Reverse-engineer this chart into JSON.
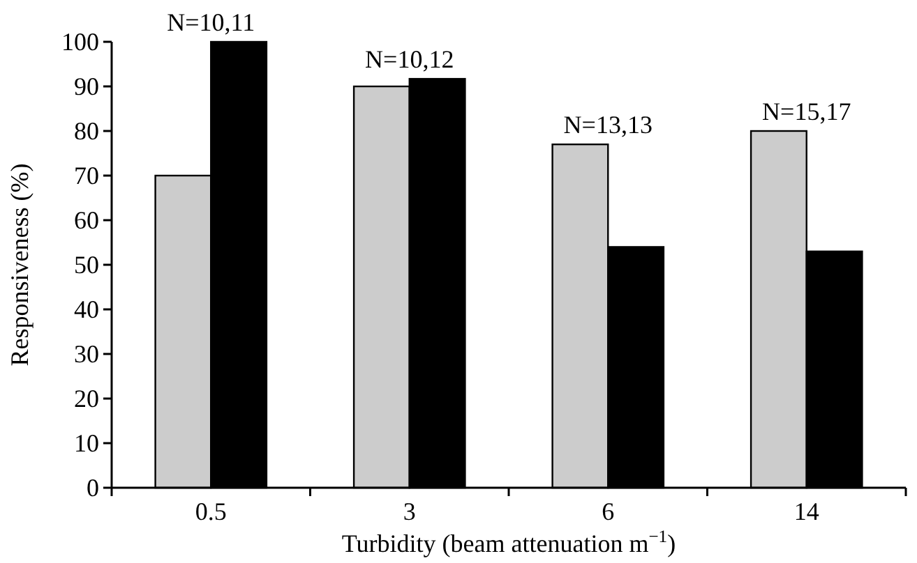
{
  "chart_data": {
    "type": "bar",
    "xlabel": "Turbidity (beam attenuation m$^{−1}$)",
    "ylabel": "Responsiveness (%)",
    "categories": [
      "0.5",
      "3",
      "6",
      "14"
    ],
    "series": [
      {
        "color": "#cccccc",
        "values": [
          70,
          90,
          77,
          80
        ]
      },
      {
        "color": "#000000",
        "values": [
          100,
          91.7,
          54,
          53
        ]
      }
    ],
    "ylim": [
      0,
      100
    ],
    "yticks": [
      0,
      10,
      20,
      30,
      40,
      50,
      60,
      70,
      80,
      90,
      100
    ],
    "annotations": [
      {
        "text": "N=10,11",
        "x": "0.5",
        "y": 100
      },
      {
        "text": "N=10,12",
        "x": "3",
        "y": 91.7
      },
      {
        "text": "N=13,13",
        "x": "6",
        "y": 77
      },
      {
        "text": "N=15,17",
        "x": "14",
        "y": 80
      }
    ]
  }
}
